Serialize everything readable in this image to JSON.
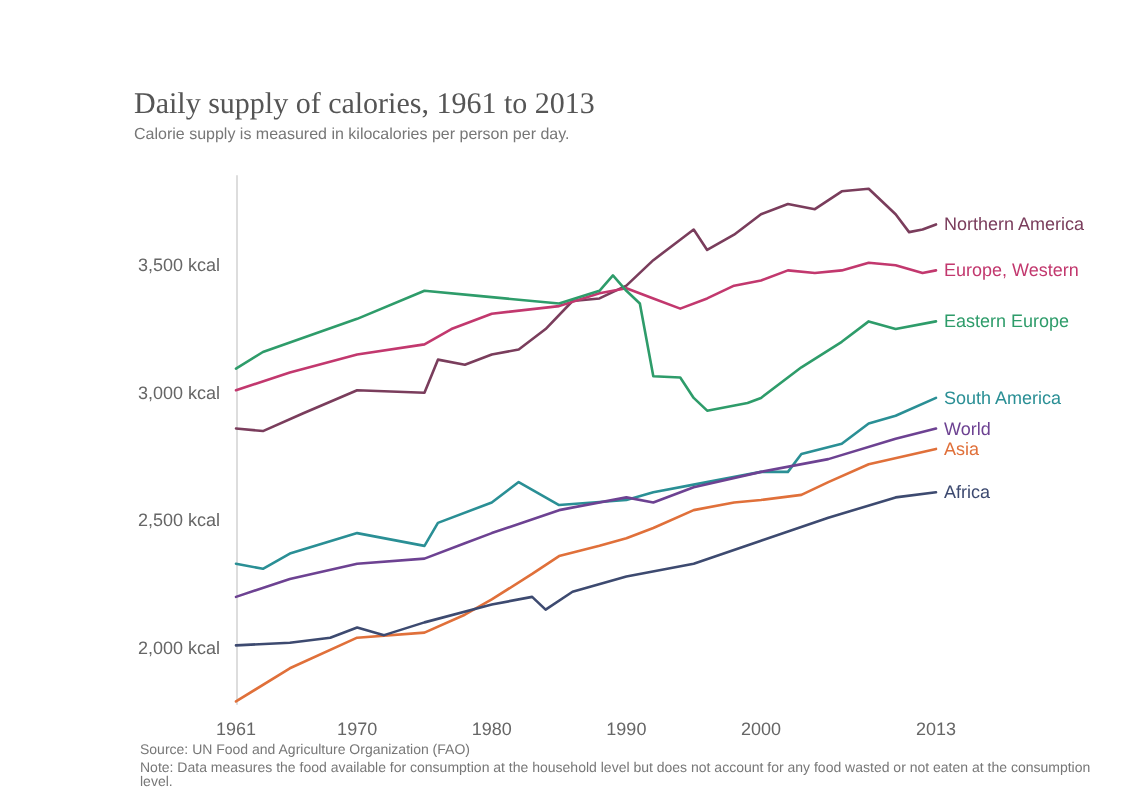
{
  "chart_data": {
    "type": "line",
    "title": "Daily supply of calories, 1961 to 2013",
    "subtitle": "Calorie supply is measured in kilocalories per person per day.",
    "xlim": [
      1961,
      2013
    ],
    "xticks": [
      1961,
      1970,
      1980,
      1990,
      2000,
      2013
    ],
    "ylim": [
      1780,
      3850
    ],
    "yticks": [
      {
        "value": 2000,
        "label": "2,000 kcal"
      },
      {
        "value": 2500,
        "label": "2,500 kcal"
      },
      {
        "value": 3000,
        "label": "3,000 kcal"
      },
      {
        "value": 3500,
        "label": "3,500 kcal"
      }
    ],
    "grid": false,
    "legend": false,
    "marker": "none",
    "line_style": "solid",
    "annotations": [
      "Source: UN Food and Agriculture Organization (FAO)",
      "Note: Data measures the food available for consumption at the household level but does not account for any food wasted or not eaten at the consumption level."
    ],
    "series": [
      {
        "name": "Northern America",
        "color": "#7a3d5c",
        "x": [
          1961,
          1963,
          1966,
          1970,
          1975,
          1976,
          1978,
          1980,
          1982,
          1984,
          1986,
          1988,
          1990,
          1992,
          1994,
          1995,
          1996,
          1998,
          2000,
          2002,
          2004,
          2006,
          2008,
          2010,
          2011,
          2012,
          2013
        ],
        "values": [
          2860,
          2850,
          2920,
          3010,
          3000,
          3130,
          3110,
          3150,
          3170,
          3250,
          3360,
          3370,
          3420,
          3520,
          3600,
          3640,
          3560,
          3620,
          3700,
          3740,
          3720,
          3790,
          3800,
          3700,
          3630,
          3640,
          3660
        ]
      },
      {
        "name": "Europe, Western",
        "color": "#c2386e",
        "x": [
          1961,
          1965,
          1970,
          1975,
          1977,
          1980,
          1985,
          1988,
          1990,
          1992,
          1994,
          1996,
          1998,
          2000,
          2002,
          2004,
          2006,
          2008,
          2010,
          2012,
          2013
        ],
        "values": [
          3010,
          3080,
          3150,
          3190,
          3250,
          3310,
          3340,
          3390,
          3410,
          3370,
          3330,
          3370,
          3420,
          3440,
          3480,
          3470,
          3480,
          3510,
          3500,
          3470,
          3480
        ]
      },
      {
        "name": "Eastern Europe",
        "color": "#2e9c6a",
        "x": [
          1961,
          1963,
          1970,
          1975,
          1979,
          1985,
          1988,
          1989,
          1990,
          1991,
          1992,
          1994,
          1995,
          1996,
          1999,
          2000,
          2003,
          2006,
          2008,
          2010,
          2013
        ],
        "values": [
          3095,
          3160,
          3290,
          3400,
          3380,
          3350,
          3400,
          3460,
          3400,
          3350,
          3065,
          3060,
          2980,
          2930,
          2960,
          2980,
          3100,
          3200,
          3280,
          3250,
          3280
        ]
      },
      {
        "name": "South America",
        "color": "#2a8f95",
        "x": [
          1961,
          1963,
          1965,
          1970,
          1975,
          1976,
          1980,
          1982,
          1985,
          1990,
          1992,
          1995,
          2000,
          2002,
          2003,
          2006,
          2008,
          2010,
          2013
        ],
        "values": [
          2330,
          2310,
          2370,
          2450,
          2400,
          2490,
          2570,
          2650,
          2560,
          2580,
          2610,
          2640,
          2690,
          2690,
          2760,
          2800,
          2880,
          2910,
          2980
        ]
      },
      {
        "name": "World",
        "color": "#6d4292",
        "x": [
          1961,
          1965,
          1970,
          1975,
          1978,
          1980,
          1985,
          1990,
          1992,
          1995,
          2000,
          2005,
          2010,
          2013
        ],
        "values": [
          2200,
          2270,
          2330,
          2350,
          2410,
          2450,
          2540,
          2590,
          2570,
          2630,
          2690,
          2740,
          2820,
          2860
        ]
      },
      {
        "name": "Asia",
        "color": "#e0703a",
        "x": [
          1961,
          1965,
          1970,
          1975,
          1978,
          1980,
          1983,
          1985,
          1988,
          1990,
          1992,
          1995,
          1998,
          2000,
          2003,
          2005,
          2008,
          2013
        ],
        "values": [
          1790,
          1920,
          2040,
          2060,
          2130,
          2190,
          2290,
          2360,
          2400,
          2430,
          2470,
          2540,
          2570,
          2580,
          2600,
          2650,
          2720,
          2780
        ]
      },
      {
        "name": "Africa",
        "color": "#3d4a70",
        "x": [
          1961,
          1965,
          1968,
          1970,
          1972,
          1975,
          1980,
          1983,
          1984,
          1986,
          1990,
          1995,
          2000,
          2005,
          2010,
          2013
        ],
        "values": [
          2010,
          2020,
          2040,
          2080,
          2050,
          2100,
          2170,
          2200,
          2150,
          2220,
          2280,
          2330,
          2420,
          2510,
          2590,
          2610
        ]
      }
    ]
  }
}
